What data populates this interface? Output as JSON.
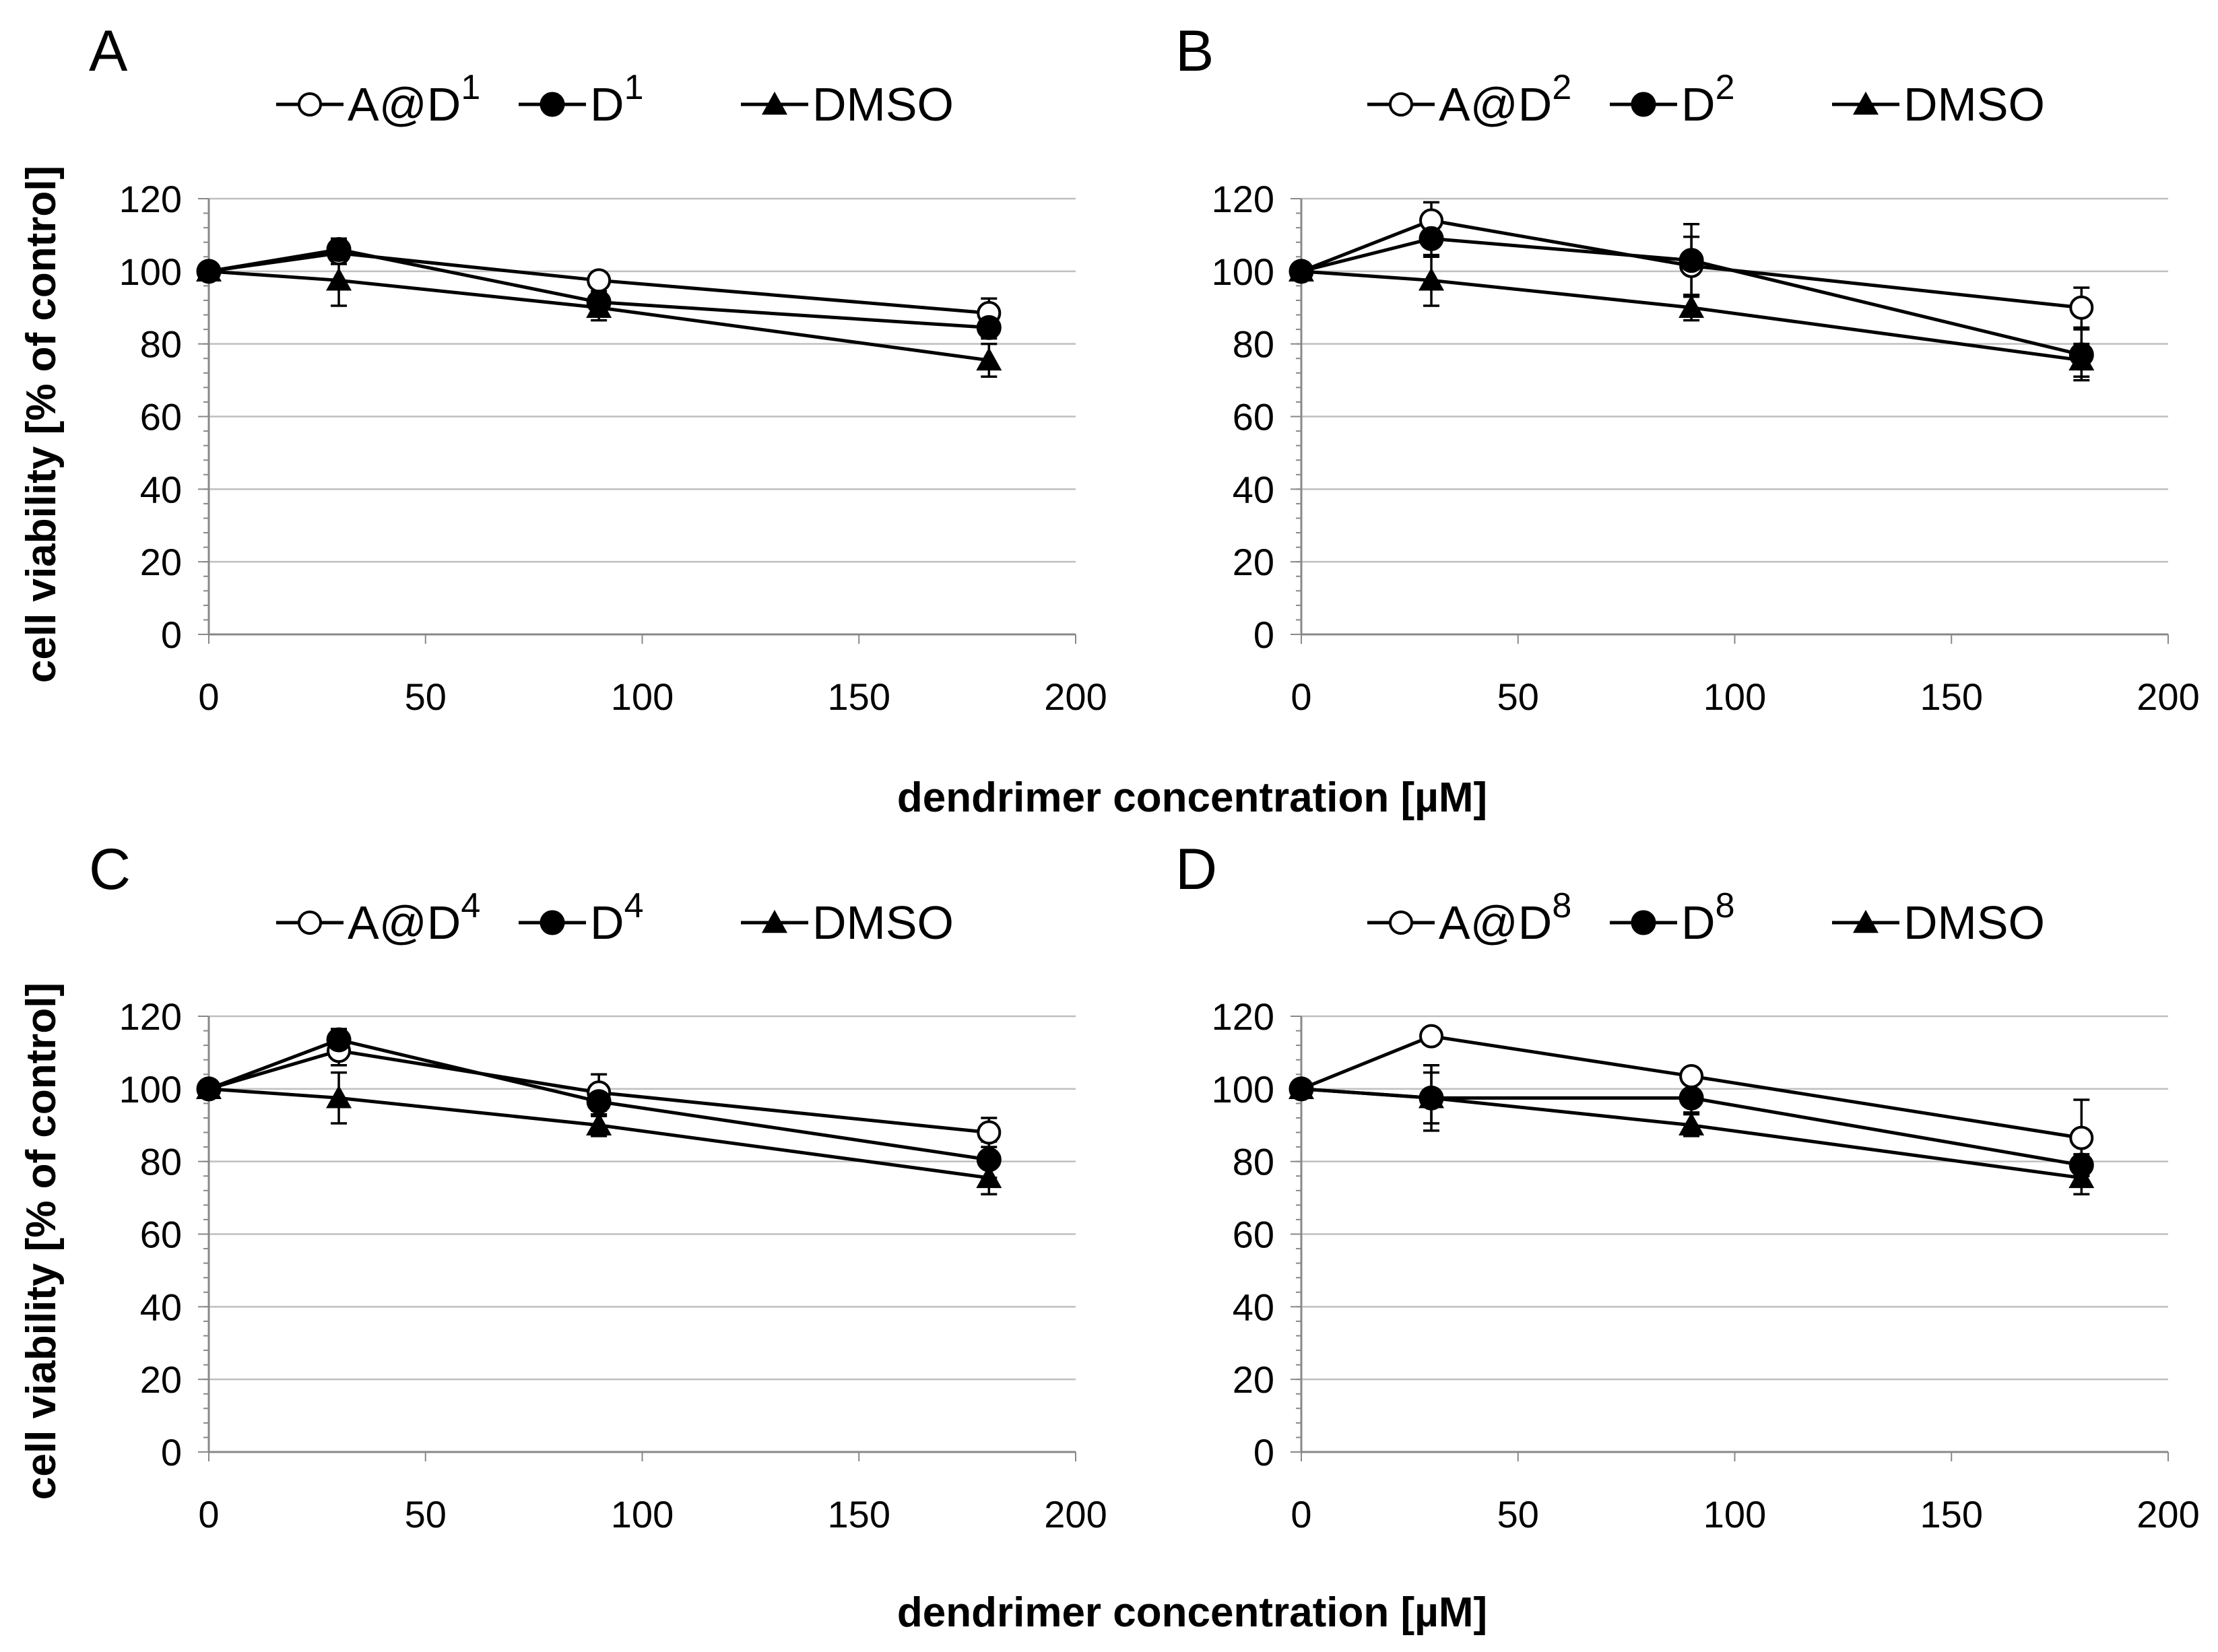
{
  "chart_data": [
    {
      "type": "line",
      "panel": "A",
      "xlim": [
        0,
        200
      ],
      "ylim": [
        0,
        120
      ],
      "xticks": [
        0,
        50,
        100,
        150,
        200
      ],
      "yticks": [
        0,
        20,
        40,
        60,
        80,
        100,
        120
      ],
      "x": [
        0,
        30,
        90,
        180
      ],
      "series": [
        {
          "name": "A@D",
          "sup": "1",
          "marker": "open-circle",
          "values": [
            100,
            105,
            97.5,
            88.5
          ],
          "errors": [
            1.5,
            3,
            2,
            4
          ]
        },
        {
          "name": "D",
          "sup": "1",
          "marker": "filled-circle",
          "values": [
            100,
            106,
            91.5,
            84.5
          ],
          "errors": [
            1.5,
            3,
            3,
            3
          ]
        },
        {
          "name": "DMSO",
          "sup": "",
          "marker": "filled-triangle",
          "values": [
            100,
            97.5,
            90,
            75.5
          ],
          "errors": [
            1.5,
            7,
            3.5,
            4.5
          ]
        }
      ]
    },
    {
      "type": "line",
      "panel": "B",
      "xlim": [
        0,
        200
      ],
      "ylim": [
        0,
        120
      ],
      "xticks": [
        0,
        50,
        100,
        150,
        200
      ],
      "yticks": [
        0,
        20,
        40,
        60,
        80,
        100,
        120
      ],
      "x": [
        0,
        30,
        90,
        180
      ],
      "series": [
        {
          "name": "A@D",
          "sup": "2",
          "marker": "open-circle",
          "values": [
            100,
            114,
            101.5,
            90
          ],
          "errors": [
            1.5,
            5,
            8,
            5.5
          ]
        },
        {
          "name": "D",
          "sup": "2",
          "marker": "filled-circle",
          "values": [
            100,
            109,
            103,
            77
          ],
          "errors": [
            1.5,
            5,
            10,
            7
          ]
        },
        {
          "name": "DMSO",
          "sup": "",
          "marker": "filled-triangle",
          "values": [
            100,
            97.5,
            90,
            75.5
          ],
          "errors": [
            1.5,
            7,
            3.5,
            4.5
          ]
        }
      ]
    },
    {
      "type": "line",
      "panel": "C",
      "xlim": [
        0,
        200
      ],
      "ylim": [
        0,
        120
      ],
      "xticks": [
        0,
        50,
        100,
        150,
        200
      ],
      "yticks": [
        0,
        20,
        40,
        60,
        80,
        100,
        120
      ],
      "x": [
        0,
        30,
        90,
        180
      ],
      "series": [
        {
          "name": "A@D",
          "sup": "4",
          "marker": "open-circle",
          "values": [
            100,
            110.5,
            99,
            88
          ],
          "errors": [
            1.5,
            4,
            5,
            4
          ]
        },
        {
          "name": "D",
          "sup": "4",
          "marker": "filled-circle",
          "values": [
            100,
            113.5,
            96.5,
            80.5
          ],
          "errors": [
            1.5,
            3,
            4,
            5
          ]
        },
        {
          "name": "DMSO",
          "sup": "",
          "marker": "filled-triangle",
          "values": [
            100,
            97.5,
            90,
            75.5
          ],
          "errors": [
            1.5,
            7,
            3,
            4.5
          ]
        }
      ]
    },
    {
      "type": "line",
      "panel": "D",
      "xlim": [
        0,
        200
      ],
      "ylim": [
        0,
        120
      ],
      "xticks": [
        0,
        50,
        100,
        150,
        200
      ],
      "yticks": [
        0,
        20,
        40,
        60,
        80,
        100,
        120
      ],
      "x": [
        0,
        30,
        90,
        180
      ],
      "series": [
        {
          "name": "A@D",
          "sup": "8",
          "marker": "open-circle",
          "values": [
            100,
            114.5,
            103.5,
            86.5
          ],
          "errors": [
            1.5,
            2,
            2,
            10.5
          ]
        },
        {
          "name": "D",
          "sup": "8",
          "marker": "filled-circle",
          "values": [
            100,
            97.5,
            97.5,
            79
          ],
          "errors": [
            1.5,
            9,
            4,
            3
          ]
        },
        {
          "name": "DMSO",
          "sup": "",
          "marker": "filled-triangle",
          "values": [
            100,
            97.5,
            90,
            75.5
          ],
          "errors": [
            1.5,
            7,
            3,
            4.5
          ]
        }
      ]
    }
  ],
  "shared": {
    "ylabel": "cell viability [% of control]",
    "xlabel": "dendrimer concentration [µM]"
  }
}
